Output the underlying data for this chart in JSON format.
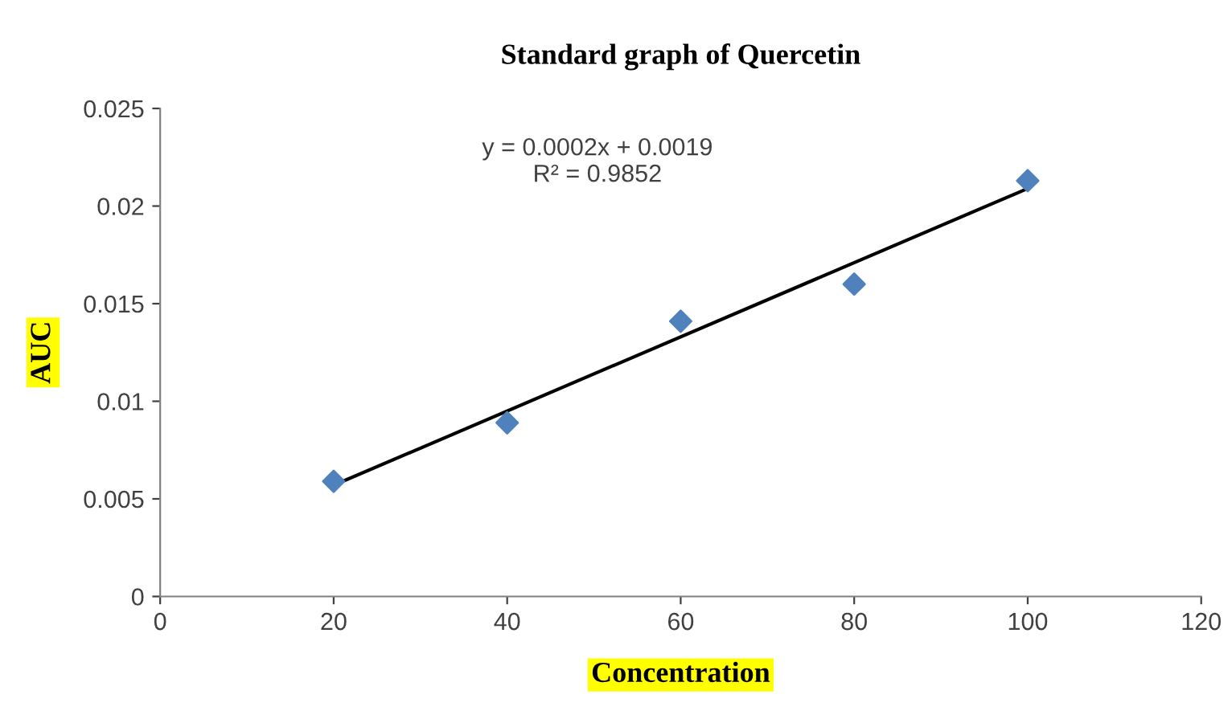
{
  "chart_data": {
    "type": "scatter",
    "title": "Standard graph of Quercetin",
    "xlabel": "Concentration",
    "ylabel": "AUC",
    "series": [
      {
        "color": "#4f81bd",
        "marker": "diamond",
        "x": [
          20,
          40,
          60,
          80,
          100
        ],
        "values": [
          0.0059,
          0.0089,
          0.0141,
          0.016,
          0.0213
        ]
      },
      {
        "type": "line",
        "color": "#000000",
        "marker": "none",
        "line_style": "solid",
        "x": [
          20,
          100
        ],
        "values": [
          0.0057,
          0.0209
        ]
      }
    ],
    "annotations": [
      "y = 0.0002x + 0.0019\nR² = 0.9852"
    ],
    "xlim": [
      0,
      120
    ],
    "xticks": [
      0,
      20,
      40,
      60,
      80,
      100,
      120
    ],
    "ylim": [
      0,
      0.025
    ],
    "yticks": [
      0,
      0.005,
      0.01,
      0.015,
      0.02,
      0.025
    ],
    "grid": false,
    "legend": false
  }
}
